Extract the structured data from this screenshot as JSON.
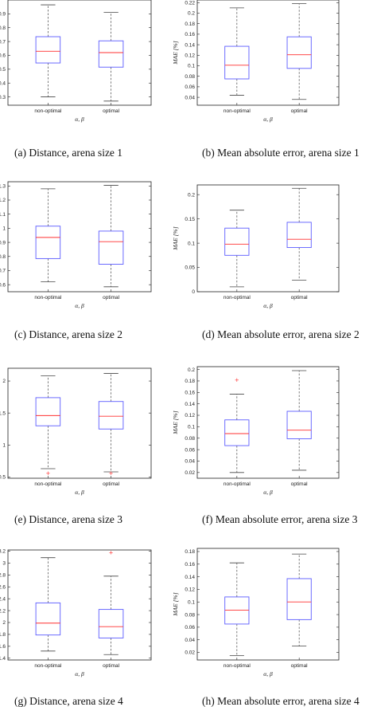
{
  "chart_data": [
    {
      "type": "box",
      "caption": "(a) Distance, arena size 1",
      "xlabel": "α, β",
      "ylabel": "d [m]",
      "ylim": [
        0.24,
        1.0
      ],
      "yticks": [
        "0.3",
        "0.4",
        "0.5",
        "0.6",
        "0.7",
        "0.8",
        "0.9"
      ],
      "ytick_values": [
        0.3,
        0.4,
        0.5,
        0.6,
        0.7,
        0.8,
        0.9
      ],
      "categories": [
        "non-optimal",
        "optimal"
      ],
      "boxes": [
        {
          "whisker_low": 0.3,
          "q1": 0.545,
          "median": 0.63,
          "q3": 0.735,
          "whisker_high": 0.965,
          "outliers": []
        },
        {
          "whisker_low": 0.27,
          "q1": 0.515,
          "median": 0.62,
          "q3": 0.705,
          "whisker_high": 0.91,
          "outliers": []
        }
      ]
    },
    {
      "type": "box",
      "caption": "(b) Mean absolute error, arena size 1",
      "xlabel": "α, β",
      "ylabel": "MAE [%]",
      "ylim": [
        0.025,
        0.225
      ],
      "yticks": [
        "0.04",
        "0.06",
        "0.08",
        "0.1",
        "0.12",
        "0.14",
        "0.16",
        "0.18",
        "0.2",
        "0.22"
      ],
      "ytick_values": [
        0.04,
        0.06,
        0.08,
        0.1,
        0.12,
        0.14,
        0.16,
        0.18,
        0.2,
        0.22
      ],
      "categories": [
        "non-optimal",
        "optimal"
      ],
      "boxes": [
        {
          "whisker_low": 0.044,
          "q1": 0.075,
          "median": 0.101,
          "q3": 0.137,
          "whisker_high": 0.21,
          "outliers": []
        },
        {
          "whisker_low": 0.036,
          "q1": 0.095,
          "median": 0.121,
          "q3": 0.155,
          "whisker_high": 0.218,
          "outliers": []
        }
      ]
    },
    {
      "type": "box",
      "caption": "(c) Distance, arena size 2",
      "xlabel": "α, β",
      "ylabel": "d [m]",
      "ylim": [
        0.55,
        1.33
      ],
      "yticks": [
        "0.6",
        "0.7",
        "0.8",
        "0.9",
        "1",
        "1.1",
        "1.2",
        "1.3"
      ],
      "ytick_values": [
        0.6,
        0.7,
        0.8,
        0.9,
        1,
        1.1,
        1.2,
        1.3
      ],
      "categories": [
        "non-optimal",
        "optimal"
      ],
      "boxes": [
        {
          "whisker_low": 0.62,
          "q1": 0.785,
          "median": 0.935,
          "q3": 1.015,
          "whisker_high": 1.28,
          "outliers": []
        },
        {
          "whisker_low": 0.585,
          "q1": 0.745,
          "median": 0.905,
          "q3": 0.98,
          "whisker_high": 1.305,
          "outliers": []
        }
      ]
    },
    {
      "type": "box",
      "caption": "(d) Mean absolute error, arena size 2",
      "xlabel": "α, β",
      "ylabel": "MAE [%]",
      "ylim": [
        0,
        0.22
      ],
      "yticks": [
        "0",
        "0.05",
        "0.1",
        "0.15",
        "0.2"
      ],
      "ytick_values": [
        0,
        0.05,
        0.1,
        0.15,
        0.2
      ],
      "categories": [
        "non-optimal",
        "optimal"
      ],
      "boxes": [
        {
          "whisker_low": 0.01,
          "q1": 0.075,
          "median": 0.098,
          "q3": 0.131,
          "whisker_high": 0.168,
          "outliers": []
        },
        {
          "whisker_low": 0.024,
          "q1": 0.091,
          "median": 0.108,
          "q3": 0.143,
          "whisker_high": 0.213,
          "outliers": []
        }
      ]
    },
    {
      "type": "box",
      "caption": "(e) Distance, arena size 3",
      "xlabel": "α, β",
      "ylabel": "d [m]",
      "ylim": [
        0.48,
        2.2
      ],
      "yticks": [
        "0.5",
        "1",
        "1.5",
        "2"
      ],
      "ytick_values": [
        0.5,
        1,
        1.5,
        2
      ],
      "categories": [
        "non-optimal",
        "optimal"
      ],
      "boxes": [
        {
          "whisker_low": 0.63,
          "q1": 1.3,
          "median": 1.46,
          "q3": 1.74,
          "whisker_high": 2.08,
          "outliers": [
            0.56
          ]
        },
        {
          "whisker_low": 0.58,
          "q1": 1.25,
          "median": 1.45,
          "q3": 1.68,
          "whisker_high": 2.12,
          "outliers": [
            0.56
          ]
        }
      ]
    },
    {
      "type": "box",
      "caption": "(f) Mean absolute error, arena size 3",
      "xlabel": "α, β",
      "ylabel": "MAE [%]",
      "ylim": [
        0.01,
        0.205
      ],
      "yticks": [
        "0.02",
        "0.04",
        "0.06",
        "0.08",
        "0.1",
        "0.12",
        "0.14",
        "0.16",
        "0.18",
        "0.2"
      ],
      "ytick_values": [
        0.02,
        0.04,
        0.06,
        0.08,
        0.1,
        0.12,
        0.14,
        0.16,
        0.18,
        0.2
      ],
      "categories": [
        "non-optimal",
        "optimal"
      ],
      "boxes": [
        {
          "whisker_low": 0.02,
          "q1": 0.067,
          "median": 0.088,
          "q3": 0.112,
          "whisker_high": 0.157,
          "outliers": [
            0.182
          ]
        },
        {
          "whisker_low": 0.024,
          "q1": 0.079,
          "median": 0.094,
          "q3": 0.127,
          "whisker_high": 0.198,
          "outliers": []
        }
      ]
    },
    {
      "type": "box",
      "caption": "(g) Distance, arena size 4",
      "xlabel": "α, β",
      "ylabel": "d [m]",
      "ylim": [
        1.37,
        3.22
      ],
      "yticks": [
        "1.4",
        "1.6",
        "1.8",
        "2",
        "2.2",
        "2.4",
        "2.6",
        "2.8",
        "3",
        "3.2"
      ],
      "ytick_values": [
        1.4,
        1.6,
        1.8,
        2,
        2.2,
        2.4,
        2.6,
        2.8,
        3,
        3.2
      ],
      "categories": [
        "non-optimal",
        "optimal"
      ],
      "boxes": [
        {
          "whisker_low": 1.52,
          "q1": 1.79,
          "median": 1.99,
          "q3": 2.33,
          "whisker_high": 3.09,
          "outliers": []
        },
        {
          "whisker_low": 1.46,
          "q1": 1.74,
          "median": 1.93,
          "q3": 2.22,
          "whisker_high": 2.78,
          "outliers": [
            3.18
          ]
        }
      ]
    },
    {
      "type": "box",
      "caption": "(h) Mean absolute error, arena size 4",
      "xlabel": "α, β",
      "ylabel": "MAE [%]",
      "ylim": [
        0.008,
        0.185
      ],
      "yticks": [
        "0.02",
        "0.04",
        "0.06",
        "0.08",
        "0.1",
        "0.12",
        "0.14",
        "0.16",
        "0.18"
      ],
      "ytick_values": [
        0.02,
        0.04,
        0.06,
        0.08,
        0.1,
        0.12,
        0.14,
        0.16,
        0.18
      ],
      "categories": [
        "non-optimal",
        "optimal"
      ],
      "boxes": [
        {
          "whisker_low": 0.015,
          "q1": 0.065,
          "median": 0.087,
          "q3": 0.108,
          "whisker_high": 0.162,
          "outliers": []
        },
        {
          "whisker_low": 0.03,
          "q1": 0.072,
          "median": 0.1,
          "q3": 0.137,
          "whisker_high": 0.176,
          "outliers": []
        }
      ]
    }
  ],
  "colors": {
    "box": "#5b5bff",
    "median": "#ff3030",
    "whisker": "#444444",
    "outlier": "#ff3030",
    "axis": "#222222"
  }
}
